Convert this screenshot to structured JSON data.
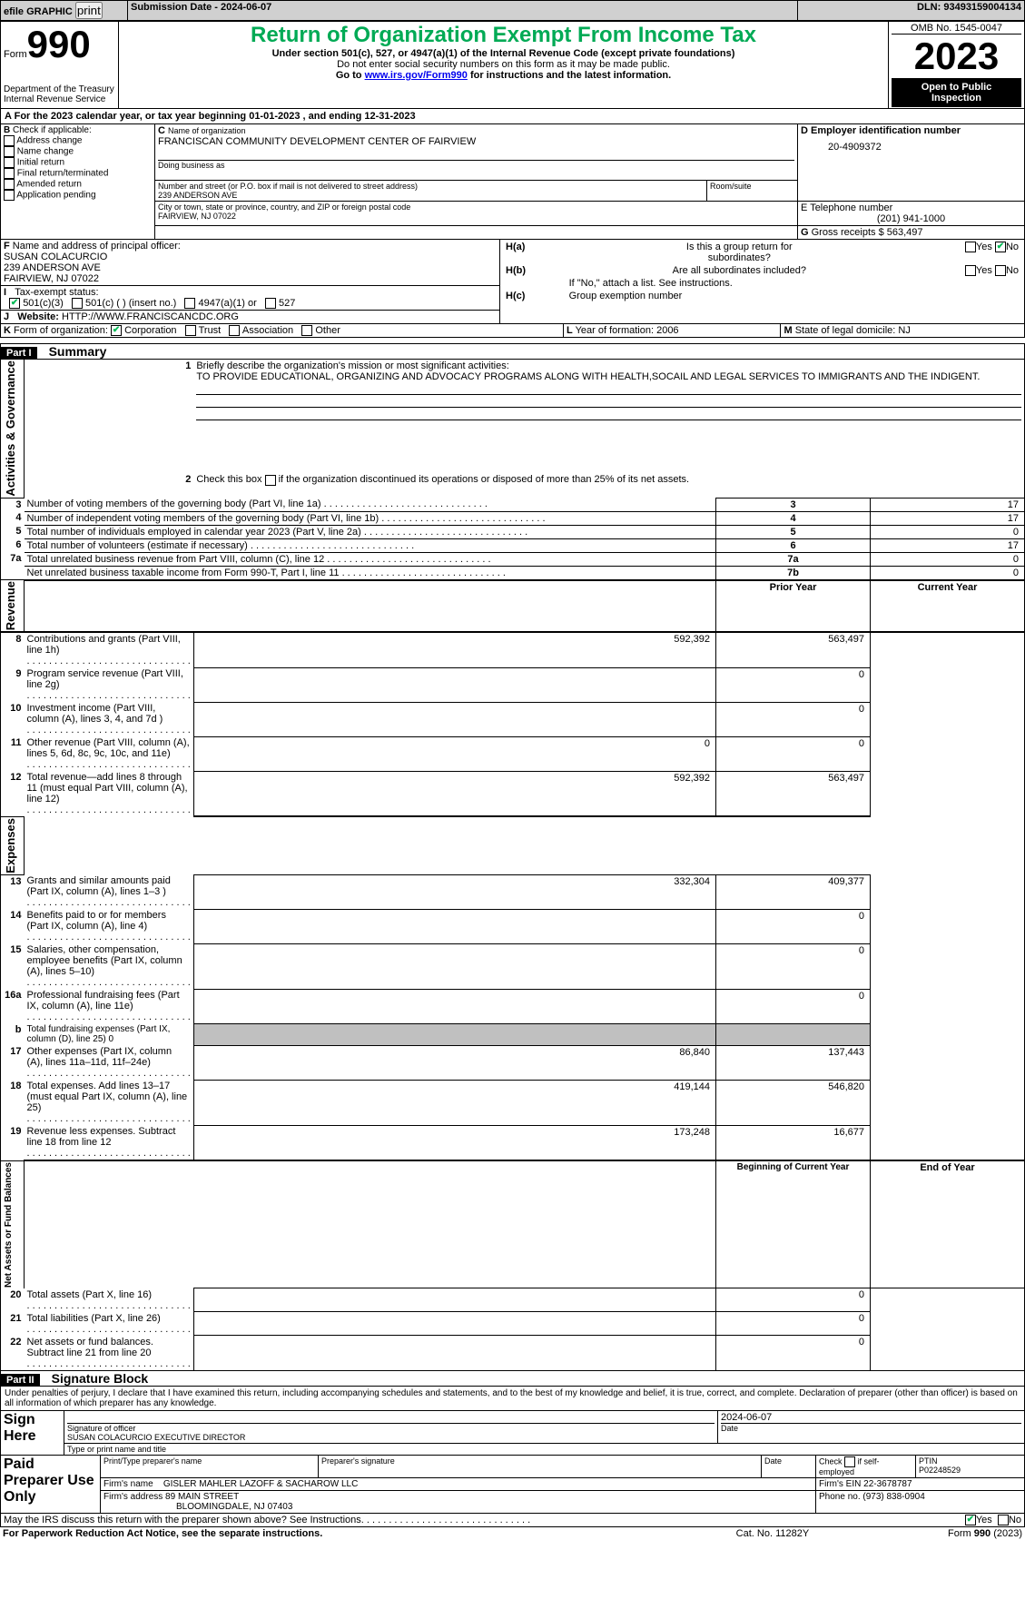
{
  "topbar": {
    "efile_label": "efile GRAPHIC",
    "print_label": "print",
    "submission_label": "Submission Date - 2024-06-07",
    "dln_label": "DLN: 93493159004134"
  },
  "header": {
    "form_word": "Form",
    "form_number": "990",
    "title": "Return of Organization Exempt From Income Tax",
    "subtitle": "Under section 501(c), 527, or 4947(a)(1) of the Internal Revenue Code (except private foundations)",
    "ssn_note": "Do not enter social security numbers on this form as it may be made public.",
    "goto_prefix": "Go to ",
    "goto_link": "www.irs.gov/Form990",
    "goto_suffix": " for instructions and the latest information.",
    "dept": "Department of the Treasury",
    "service": "Internal Revenue Service",
    "omb": "OMB No. 1545-0047",
    "tax_year": "2023",
    "open_line1": "Open to Public",
    "open_line2": "Inspection"
  },
  "lineA": {
    "text": "For the 2023 calendar year, or tax year beginning 01-01-2023    , and ending 12-31-2023"
  },
  "boxB": {
    "label": "B",
    "check_label": "Check if applicable:",
    "items": [
      "Address change",
      "Name change",
      "Initial return",
      "Final return/terminated",
      "Amended return",
      "Application pending"
    ]
  },
  "boxC": {
    "label": "C",
    "name_label": "Name of organization",
    "name": "FRANCISCAN COMMUNITY DEVELOPMENT CENTER OF FAIRVIEW",
    "dba_label": "Doing business as",
    "street_label": "Number and street (or P.O. box if mail is not delivered to street address)",
    "street": "239 ANDERSON AVE",
    "room_label": "Room/suite",
    "city_label": "City or town, state or province, country, and ZIP or foreign postal code",
    "city": "FAIRVIEW, NJ  07022"
  },
  "boxD": {
    "label": "D Employer identification number",
    "value": "20-4909372"
  },
  "boxE": {
    "label": "E Telephone number",
    "value": "(201) 941-1000"
  },
  "boxG": {
    "label": "G",
    "text": "Gross receipts $ ",
    "value": "563,497"
  },
  "boxF": {
    "label": "F",
    "text": "Name and address of principal officer:",
    "name": "SUSAN COLACURCIO",
    "street": "239 ANDERSON AVE",
    "city": "FAIRVIEW, NJ  07022"
  },
  "boxH": {
    "a_label": "H(a)",
    "a_text": "Is this a group return for",
    "a_text2": "subordinates?",
    "b_label": "H(b)",
    "b_text": "Are all subordinates included?",
    "b_note": "If \"No,\" attach a list. See instructions.",
    "c_label": "H(c)",
    "c_text": "Group exemption number ",
    "yes": "Yes",
    "no": "No"
  },
  "boxI": {
    "label": "I",
    "text": "Tax-exempt status:",
    "opt1": "501(c)(3)",
    "opt2": "501(c) (  ) (insert no.)",
    "opt3": "4947(a)(1) or",
    "opt4": "527"
  },
  "boxJ": {
    "label": "J",
    "text": "Website: ",
    "value": "HTTP://WWW.FRANCISCANCDC.ORG"
  },
  "boxK": {
    "label": "K",
    "text": "Form of organization:",
    "opts": [
      "Corporation",
      "Trust",
      "Association",
      "Other"
    ]
  },
  "boxL": {
    "label": "L",
    "text": "Year of formation: ",
    "value": "2006"
  },
  "boxM": {
    "label": "M",
    "text": "State of legal domicile: ",
    "value": "NJ"
  },
  "part1": {
    "label": "Part I",
    "title": "Summary",
    "line1_label": "1",
    "line1_text": "Briefly describe the organization's mission or most significant activities:",
    "line1_value": "TO PROVIDE EDUCATIONAL, ORGANIZING AND ADVOCACY PROGRAMS ALONG WITH HEALTH,SOCAIL AND LEGAL SERVICES TO IMMIGRANTS AND THE INDIGENT.",
    "line2_label": "2",
    "line2_text": "Check this box ",
    "line2_suffix": " if the organization discontinued its operations or disposed of more than 25% of its net assets.",
    "rows_ag": [
      {
        "n": "3",
        "t": "Number of voting members of the governing body (Part VI, line 1a)",
        "k": "3",
        "v": "17"
      },
      {
        "n": "4",
        "t": "Number of independent voting members of the governing body (Part VI, line 1b)",
        "k": "4",
        "v": "17"
      },
      {
        "n": "5",
        "t": "Total number of individuals employed in calendar year 2023 (Part V, line 2a)",
        "k": "5",
        "v": "0"
      },
      {
        "n": "6",
        "t": "Total number of volunteers (estimate if necessary)",
        "k": "6",
        "v": "17"
      },
      {
        "n": "7a",
        "t": "Total unrelated business revenue from Part VIII, column (C), line 12",
        "k": "7a",
        "v": "0"
      },
      {
        "n": "",
        "t": "Net unrelated business taxable income from Form 990-T, Part I, line 11",
        "k": "7b",
        "v": "0"
      }
    ],
    "prior_label": "Prior Year",
    "current_label": "Current Year",
    "rows_rev": [
      {
        "n": "8",
        "t": "Contributions and grants (Part VIII, line 1h)",
        "p": "592,392",
        "c": "563,497"
      },
      {
        "n": "9",
        "t": "Program service revenue (Part VIII, line 2g)",
        "p": "",
        "c": "0"
      },
      {
        "n": "10",
        "t": "Investment income (Part VIII, column (A), lines 3, 4, and 7d )",
        "p": "",
        "c": "0"
      },
      {
        "n": "11",
        "t": "Other revenue (Part VIII, column (A), lines 5, 6d, 8c, 9c, 10c, and 11e)",
        "p": "0",
        "c": "0"
      },
      {
        "n": "12",
        "t": "Total revenue—add lines 8 through 11 (must equal Part VIII, column (A), line 12)",
        "p": "592,392",
        "c": "563,497"
      }
    ],
    "rows_exp": [
      {
        "n": "13",
        "t": "Grants and similar amounts paid (Part IX, column (A), lines 1–3 )",
        "p": "332,304",
        "c": "409,377"
      },
      {
        "n": "14",
        "t": "Benefits paid to or for members (Part IX, column (A), line 4)",
        "p": "",
        "c": "0"
      },
      {
        "n": "15",
        "t": "Salaries, other compensation, employee benefits (Part IX, column (A), lines 5–10)",
        "p": "",
        "c": "0"
      },
      {
        "n": "16a",
        "t": "Professional fundraising fees (Part IX, column (A), line 11e)",
        "p": "",
        "c": "0"
      },
      {
        "n": "b",
        "t": "Total fundraising expenses (Part IX, column (D), line 25) 0",
        "p": "SHADE",
        "c": "SHADE"
      },
      {
        "n": "17",
        "t": "Other expenses (Part IX, column (A), lines 11a–11d, 11f–24e)",
        "p": "86,840",
        "c": "137,443"
      },
      {
        "n": "18",
        "t": "Total expenses. Add lines 13–17 (must equal Part IX, column (A), line 25)",
        "p": "419,144",
        "c": "546,820"
      },
      {
        "n": "19",
        "t": "Revenue less expenses. Subtract line 18 from line 12",
        "p": "173,248",
        "c": "16,677"
      }
    ],
    "begin_label": "Beginning of Current Year",
    "end_label": "End of Year",
    "rows_na": [
      {
        "n": "20",
        "t": "Total assets (Part X, line 16)",
        "p": "",
        "c": "0"
      },
      {
        "n": "21",
        "t": "Total liabilities (Part X, line 26)",
        "p": "",
        "c": "0"
      },
      {
        "n": "22",
        "t": "Net assets or fund balances. Subtract line 21 from line 20",
        "p": "",
        "c": "0"
      }
    ],
    "side_ag": "Activities & Governance",
    "side_rev": "Revenue",
    "side_exp": "Expenses",
    "side_na": "Net Assets or Fund Balances"
  },
  "part2": {
    "label": "Part II",
    "title": "Signature Block",
    "declaration": "Under penalties of perjury, I declare that I have examined this return, including accompanying schedules and statements, and to the best of my knowledge and belief, it is true, correct, and complete. Declaration of preparer (other than officer) is based on all information of which preparer has any knowledge.",
    "sign_here": "Sign Here",
    "sig_officer_label": "Signature of officer",
    "sig_officer_date": "2024-06-07",
    "sig_name": "SUSAN COLACURCIO  EXECUTIVE DIRECTOR",
    "sig_name_label": "Type or print name and title",
    "date_label": "Date",
    "paid": "Paid Preparer Use Only",
    "prep_name_label": "Print/Type preparer's name",
    "prep_sig_label": "Preparer's signature",
    "check_self": "Check         if self-employed",
    "ptin_label": "PTIN",
    "ptin": "P02248529",
    "firm_name_label": "Firm's name   ",
    "firm_name": "GISLER MAHLER LAZOFF & SACHAROW LLC",
    "firm_ein_label": "Firm's EIN  ",
    "firm_ein": "22-3678787",
    "firm_addr_label": "Firm's address ",
    "firm_addr1": "89 MAIN STREET",
    "firm_addr2": "BLOOMINGDALE, NJ  07403",
    "phone_label": "Phone no. ",
    "phone": "(973) 838-0904",
    "may_irs": "May the IRS discuss this return with the preparer shown above? See Instructions.",
    "yes": "Yes",
    "no": "No"
  },
  "footer": {
    "left": "For Paperwork Reduction Act Notice, see the separate instructions.",
    "mid": "Cat. No. 11282Y",
    "right": "Form 990 (2023)"
  }
}
